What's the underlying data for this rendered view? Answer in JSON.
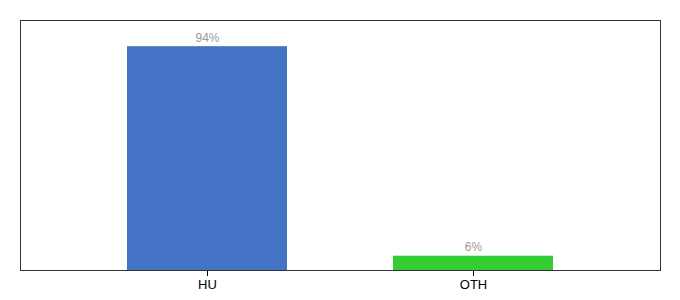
{
  "chart_data": {
    "type": "bar",
    "categories": [
      "HU",
      "OTH"
    ],
    "values": [
      94,
      6
    ],
    "value_labels": [
      "94%",
      "6%"
    ],
    "colors": [
      "#4472C4",
      "#33CC33"
    ],
    "data_labels": true,
    "ylim": [
      0,
      105
    ],
    "tick_labels": "x"
  }
}
